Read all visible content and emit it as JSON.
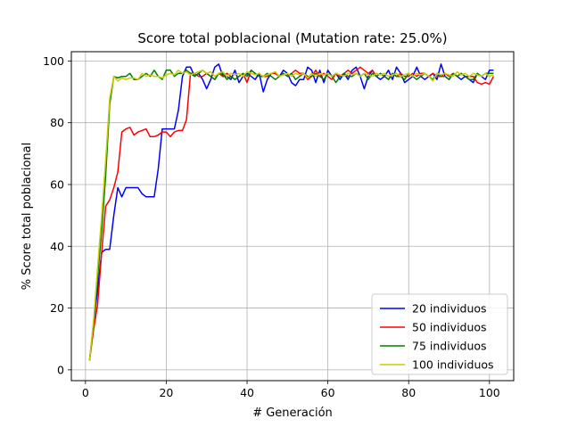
{
  "chart_data": {
    "type": "line",
    "title": "Score total poblacional (Mutation rate: 25.0%)",
    "xlabel": "# Generación",
    "ylabel": "% Score total poblacional",
    "xlim": [
      -3.5,
      106
    ],
    "ylim": [
      -3.5,
      103
    ],
    "xticks": [
      0,
      20,
      40,
      60,
      80,
      100
    ],
    "yticks": [
      0,
      20,
      40,
      60,
      80,
      100
    ],
    "grid": true,
    "legend_position": "lower-right",
    "series": [
      {
        "name": "20 individuos",
        "color": "#0000ff",
        "x": [
          1,
          2,
          3,
          4,
          5,
          6,
          7,
          8,
          9,
          10,
          11,
          12,
          13,
          14,
          15,
          16,
          17,
          18,
          19,
          20,
          21,
          22,
          23,
          24,
          25,
          26,
          27,
          28,
          29,
          30,
          31,
          32,
          33,
          34,
          35,
          36,
          37,
          38,
          39,
          40,
          41,
          42,
          43,
          44,
          45,
          46,
          47,
          48,
          49,
          50,
          51,
          52,
          53,
          54,
          55,
          56,
          57,
          58,
          59,
          60,
          61,
          62,
          63,
          64,
          65,
          66,
          67,
          68,
          69,
          70,
          71,
          72,
          73,
          74,
          75,
          76,
          77,
          78,
          79,
          80,
          81,
          82,
          83,
          84,
          85,
          86,
          87,
          88,
          89,
          90,
          91,
          92,
          93,
          94,
          95,
          96,
          97,
          98,
          99,
          100,
          101
        ],
        "y": [
          3,
          15,
          26,
          38,
          39,
          39,
          50,
          59,
          56,
          59,
          59,
          59,
          59,
          57,
          56,
          56,
          56,
          65,
          78,
          78,
          78,
          78,
          84,
          95,
          98,
          98,
          95,
          96,
          94,
          91,
          94,
          98,
          99,
          95,
          95,
          94,
          97,
          93,
          95,
          96,
          95,
          94,
          96,
          90,
          94,
          96,
          96,
          95,
          97,
          96,
          93,
          92,
          94,
          94,
          98,
          97,
          93,
          97,
          93,
          97,
          95,
          96,
          94,
          96,
          94,
          97,
          98,
          95,
          91,
          95,
          97,
          95,
          94,
          95,
          97,
          94,
          98,
          96,
          93,
          94,
          95,
          98,
          95,
          94,
          95,
          96,
          94,
          99,
          95,
          94,
          96,
          95,
          94,
          95,
          94,
          93,
          96,
          95,
          94,
          97,
          97
        ]
      },
      {
        "name": "50 individuos",
        "color": "#ff0000",
        "x": [
          1,
          2,
          3,
          4,
          5,
          6,
          7,
          8,
          9,
          10,
          11,
          12,
          13,
          14,
          15,
          16,
          17,
          18,
          19,
          20,
          21,
          22,
          23,
          24,
          25,
          26,
          27,
          28,
          29,
          30,
          31,
          32,
          33,
          34,
          35,
          36,
          37,
          38,
          39,
          40,
          41,
          42,
          43,
          44,
          45,
          46,
          47,
          48,
          49,
          50,
          51,
          52,
          53,
          54,
          55,
          56,
          57,
          58,
          59,
          60,
          61,
          62,
          63,
          64,
          65,
          66,
          67,
          68,
          69,
          70,
          71,
          72,
          73,
          74,
          75,
          76,
          77,
          78,
          79,
          80,
          81,
          82,
          83,
          84,
          85,
          86,
          87,
          88,
          89,
          90,
          91,
          92,
          93,
          94,
          95,
          96,
          97,
          98,
          99,
          100,
          101
        ],
        "y": [
          3,
          13,
          21,
          38,
          53,
          55,
          59,
          64,
          77,
          78,
          78.5,
          76,
          77,
          77.5,
          78,
          75.5,
          75.5,
          76,
          77,
          77,
          75.5,
          77,
          77.5,
          77.5,
          81,
          96,
          96,
          95,
          95,
          96,
          95,
          94,
          96,
          95,
          96,
          95,
          94,
          95,
          96,
          93,
          97,
          96,
          95,
          95,
          95,
          96,
          96,
          95,
          96,
          95,
          96,
          97,
          96,
          96,
          94,
          95,
          97,
          95,
          96,
          95,
          94,
          96,
          95,
          96,
          97,
          96,
          97,
          98,
          97,
          96,
          97,
          95,
          96,
          95,
          94,
          96,
          95,
          96,
          95,
          95,
          96,
          95,
          96,
          96,
          95,
          96,
          95,
          95,
          96,
          95,
          96,
          95,
          96,
          95,
          95,
          95,
          93,
          92.5,
          93,
          92.5,
          95
        ]
      },
      {
        "name": "75 individuos",
        "color": "#008000",
        "x": [
          1,
          2,
          3,
          4,
          5,
          6,
          7,
          8,
          9,
          10,
          11,
          12,
          13,
          14,
          15,
          16,
          17,
          18,
          19,
          20,
          21,
          22,
          23,
          24,
          25,
          26,
          27,
          28,
          29,
          30,
          31,
          32,
          33,
          34,
          35,
          36,
          37,
          38,
          39,
          40,
          41,
          42,
          43,
          44,
          45,
          46,
          47,
          48,
          49,
          50,
          51,
          52,
          53,
          54,
          55,
          56,
          57,
          58,
          59,
          60,
          61,
          62,
          63,
          64,
          65,
          66,
          67,
          68,
          69,
          70,
          71,
          72,
          73,
          74,
          75,
          76,
          77,
          78,
          79,
          80,
          81,
          82,
          83,
          84,
          85,
          86,
          87,
          88,
          89,
          90,
          91,
          92,
          93,
          94,
          95,
          96,
          97,
          98,
          99,
          100,
          101
        ],
        "y": [
          3,
          15,
          30,
          45,
          63,
          86,
          95,
          94.5,
          95,
          95,
          96,
          94,
          94,
          95,
          96,
          95,
          97,
          95,
          94,
          97,
          97,
          95,
          96,
          96,
          97,
          96,
          95,
          96,
          97,
          96,
          95,
          94,
          96,
          96,
          94,
          95,
          94,
          95,
          96,
          95,
          97,
          96,
          95,
          95,
          96,
          95,
          94,
          95,
          96,
          95,
          96,
          94,
          95,
          96,
          95,
          95,
          96,
          95,
          94,
          96,
          95,
          93,
          95,
          96,
          95,
          95,
          96,
          95,
          96,
          94,
          96,
          95,
          96,
          95,
          94,
          96,
          95,
          95,
          94,
          96,
          95,
          94,
          95,
          96,
          95,
          94,
          96,
          95,
          95,
          94,
          96,
          95,
          96,
          95,
          94,
          94,
          96,
          95,
          96,
          96,
          96
        ]
      },
      {
        "name": "100 individuos",
        "color": "#cccc00",
        "x": [
          1,
          2,
          3,
          4,
          5,
          6,
          7,
          8,
          9,
          10,
          11,
          12,
          13,
          14,
          15,
          16,
          17,
          18,
          19,
          20,
          21,
          22,
          23,
          24,
          25,
          26,
          27,
          28,
          29,
          30,
          31,
          32,
          33,
          34,
          35,
          36,
          37,
          38,
          39,
          40,
          41,
          42,
          43,
          44,
          45,
          46,
          47,
          48,
          49,
          50,
          51,
          52,
          53,
          54,
          55,
          56,
          57,
          58,
          59,
          60,
          61,
          62,
          63,
          64,
          65,
          66,
          67,
          68,
          69,
          70,
          71,
          72,
          73,
          74,
          75,
          76,
          77,
          78,
          79,
          80,
          81,
          82,
          83,
          84,
          85,
          86,
          87,
          88,
          89,
          90,
          91,
          92,
          93,
          94,
          95,
          96,
          97,
          98,
          99,
          100,
          101
        ],
        "y": [
          3,
          16,
          33,
          50,
          68,
          88,
          95,
          93.5,
          94.5,
          94,
          94.5,
          94.5,
          94,
          96,
          95,
          95.5,
          95,
          95,
          94.5,
          95.5,
          96,
          95.5,
          97,
          96,
          96.5,
          95.5,
          96,
          96.5,
          97,
          96,
          96.5,
          95,
          96,
          96.5,
          95,
          96,
          95.5,
          96,
          95,
          96.5,
          96,
          95.5,
          96,
          95,
          95.5,
          96,
          96.5,
          95,
          95.5,
          96,
          95,
          96,
          95.5,
          96,
          94.5,
          96,
          95,
          96,
          95.5,
          96,
          95,
          96,
          95.5,
          95,
          96,
          95.5,
          96,
          95,
          96,
          95.5,
          95,
          96,
          95.5,
          96,
          95,
          95.5,
          96,
          95,
          95.5,
          96,
          95,
          96,
          95.5,
          96,
          95,
          93.5,
          96,
          95.5,
          96,
          95.5,
          95,
          96.5,
          95.5,
          96,
          95,
          96,
          95.5,
          95,
          96,
          95,
          95.5
        ]
      }
    ]
  }
}
